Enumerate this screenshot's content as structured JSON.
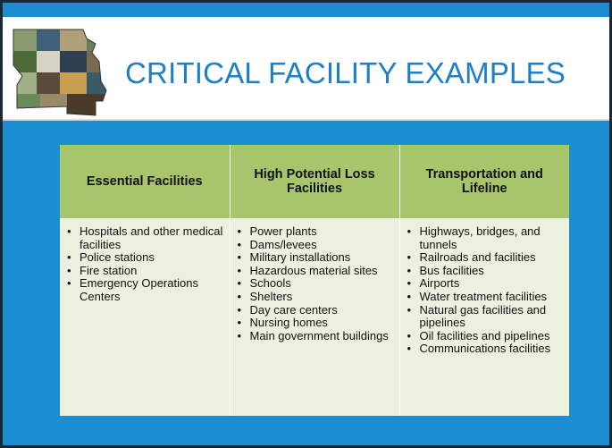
{
  "header": {
    "title": "CRITICAL FACILITY EXAMPLES"
  },
  "table": {
    "headers": [
      "Essential Facilities",
      "High Potential Loss Facilities",
      "Transportation and Lifeline"
    ],
    "columns": [
      [
        "Hospitals and other medical facilities",
        "Police stations",
        "Fire station",
        "Emergency Operations Centers"
      ],
      [
        "Power plants",
        "Dams/levees",
        "Military installations",
        "Hazardous material sites",
        "Schools",
        "Shelters",
        "Day care centers",
        "Nursing homes",
        "Main government buildings"
      ],
      [
        "Highways, bridges, and tunnels",
        "Railroads and facilities",
        "Bus facilities",
        "Airports",
        "Water treatment facilities",
        "Natural gas facilities and pipelines",
        "Oil facilities and pipelines",
        "Communications facilities"
      ]
    ]
  }
}
